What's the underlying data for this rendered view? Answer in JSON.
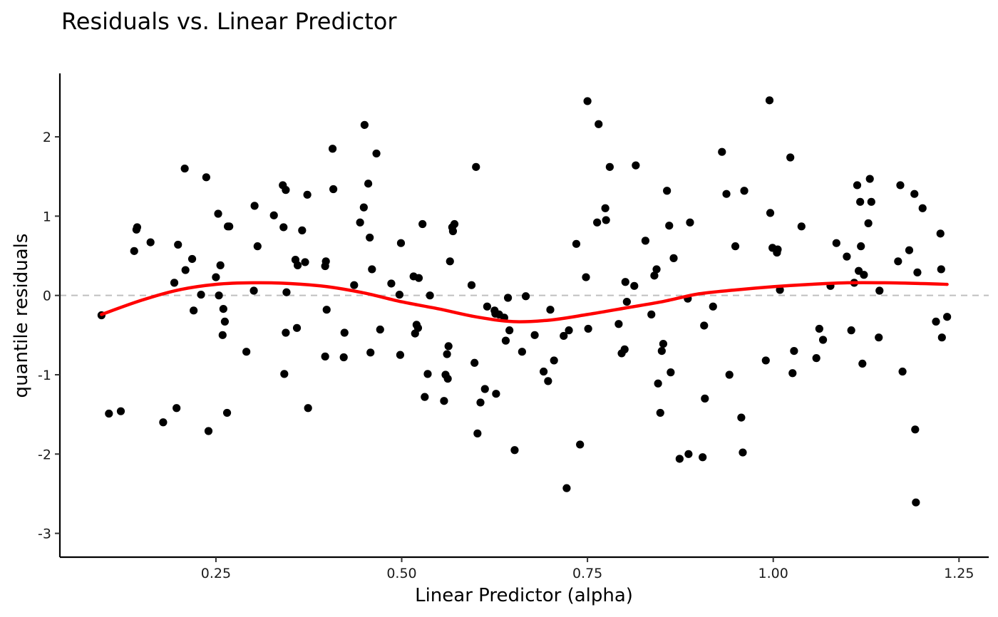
{
  "chart_data": {
    "type": "scatter",
    "title": "Residuals vs. Linear Predictor",
    "xlabel": "Linear Predictor (alpha)",
    "ylabel": "quantile residuals",
    "xlim": [
      0.04,
      1.29
    ],
    "ylim": [
      -3.3,
      2.8
    ],
    "x_ticks": [
      0.25,
      0.5,
      0.75,
      1.0,
      1.25
    ],
    "x_tick_labels": [
      "0.25",
      "0.50",
      "0.75",
      "1.00",
      "1.25"
    ],
    "y_ticks": [
      -3,
      -2,
      -1,
      0,
      1,
      2
    ],
    "y_tick_labels": [
      "-3",
      "-2",
      "-1",
      "0",
      "1",
      "2"
    ],
    "grid": false,
    "reference_line": {
      "y": 0,
      "style": "dashed",
      "color": "#bfbfbf"
    },
    "point_color": "#000000",
    "smooth_color": "#ff0000",
    "series": [
      {
        "kind": "points",
        "x": [
          0.096,
          0.106,
          0.122,
          0.14,
          0.143,
          0.144,
          0.162,
          0.179,
          0.194,
          0.197,
          0.199,
          0.208,
          0.209,
          0.218,
          0.22,
          0.23,
          0.237,
          0.24,
          0.25,
          0.253,
          0.254,
          0.256,
          0.259,
          0.26,
          0.262,
          0.265,
          0.266,
          0.268,
          0.291,
          0.301,
          0.302,
          0.306,
          0.328,
          0.34,
          0.341,
          0.342,
          0.344,
          0.345,
          0.344,
          0.357,
          0.359,
          0.36,
          0.366,
          0.37,
          0.373,
          0.374,
          0.397,
          0.398,
          0.397,
          0.399,
          0.407,
          0.408,
          0.422,
          0.423,
          0.436,
          0.444,
          0.449,
          0.45,
          0.455,
          0.457,
          0.458,
          0.46,
          0.466,
          0.471,
          0.486,
          0.497,
          0.498,
          0.499,
          0.516,
          0.518,
          0.52,
          0.523,
          0.522,
          0.528,
          0.531,
          0.535,
          0.538,
          0.557,
          0.559,
          0.561,
          0.562,
          0.563,
          0.565,
          0.568,
          0.569,
          0.571,
          0.594,
          0.598,
          0.6,
          0.602,
          0.606,
          0.612,
          0.615,
          0.625,
          0.626,
          0.627,
          0.631,
          0.638,
          0.64,
          0.643,
          0.645,
          0.652,
          0.662,
          0.667,
          0.679,
          0.691,
          0.697,
          0.7,
          0.705,
          0.718,
          0.722,
          0.725,
          0.735,
          0.74,
          0.748,
          0.75,
          0.751,
          0.763,
          0.765,
          0.774,
          0.775,
          0.78,
          0.792,
          0.796,
          0.8,
          0.801,
          0.803,
          0.813,
          0.815,
          0.828,
          0.836,
          0.84,
          0.843,
          0.845,
          0.848,
          0.85,
          0.852,
          0.857,
          0.86,
          0.862,
          0.866,
          0.874,
          0.885,
          0.886,
          0.888,
          0.905,
          0.907,
          0.908,
          0.919,
          0.931,
          0.937,
          0.941,
          0.949,
          0.957,
          0.959,
          0.961,
          0.99,
          0.995,
          0.996,
          0.999,
          1.005,
          1.006,
          1.009,
          1.023,
          1.026,
          1.028,
          1.038,
          1.058,
          1.062,
          1.067,
          1.077,
          1.085,
          1.099,
          1.105,
          1.109,
          1.113,
          1.115,
          1.117,
          1.118,
          1.12,
          1.122,
          1.128,
          1.13,
          1.132,
          1.142,
          1.143,
          1.168,
          1.171,
          1.174,
          1.183,
          1.19,
          1.191,
          1.192,
          1.194,
          1.201,
          1.219,
          1.225,
          1.226,
          1.227,
          1.234
        ],
        "y": [
          -0.25,
          -1.49,
          -1.46,
          0.56,
          0.83,
          0.86,
          0.67,
          -1.6,
          0.16,
          -1.42,
          0.64,
          1.6,
          0.32,
          0.46,
          -0.19,
          0.01,
          1.49,
          -1.71,
          0.23,
          1.03,
          0.0,
          0.38,
          -0.5,
          -0.17,
          -0.33,
          -1.48,
          0.87,
          0.87,
          -0.71,
          0.06,
          1.13,
          0.62,
          1.01,
          1.39,
          0.86,
          -0.99,
          1.33,
          0.04,
          -0.47,
          0.45,
          -0.41,
          0.38,
          0.82,
          0.42,
          1.27,
          -1.42,
          0.37,
          0.43,
          -0.77,
          -0.18,
          1.85,
          1.34,
          -0.78,
          -0.47,
          0.13,
          0.92,
          1.11,
          2.15,
          1.41,
          0.73,
          -0.72,
          0.33,
          1.79,
          -0.43,
          0.15,
          0.01,
          -0.75,
          0.66,
          0.24,
          -0.48,
          -0.37,
          0.22,
          -0.41,
          0.9,
          -1.28,
          -0.99,
          0.0,
          -1.33,
          -1.0,
          -0.74,
          -1.05,
          -0.64,
          0.43,
          0.86,
          0.81,
          0.9,
          0.13,
          -0.85,
          1.62,
          -1.74,
          -1.35,
          -1.18,
          -0.14,
          -0.19,
          -0.23,
          -1.24,
          -0.24,
          -0.28,
          -0.57,
          -0.03,
          -0.44,
          -1.95,
          -0.71,
          -0.01,
          -0.5,
          -0.96,
          -1.08,
          -0.18,
          -0.82,
          -0.51,
          -2.43,
          -0.44,
          0.65,
          -1.88,
          0.23,
          2.45,
          -0.42,
          0.92,
          2.16,
          1.1,
          0.95,
          1.62,
          -0.36,
          -0.73,
          -0.68,
          0.17,
          -0.08,
          0.12,
          1.64,
          0.69,
          -0.24,
          0.25,
          0.33,
          -1.11,
          -1.48,
          -0.7,
          -0.61,
          1.32,
          0.88,
          -0.97,
          0.47,
          -2.06,
          -0.04,
          -2.0,
          0.92,
          -2.04,
          -0.38,
          -1.3,
          -0.14,
          1.81,
          1.28,
          -1.0,
          0.62,
          -1.54,
          -1.98,
          1.32,
          -0.82,
          2.46,
          1.04,
          0.6,
          0.54,
          0.58,
          0.07,
          1.74,
          -0.98,
          -0.7,
          0.87,
          -0.79,
          -0.42,
          -0.56,
          0.12,
          0.66,
          0.49,
          -0.44,
          0.16,
          1.39,
          0.31,
          1.18,
          0.62,
          -0.86,
          0.26,
          0.91,
          1.47,
          1.18,
          -0.53,
          0.06,
          0.43,
          1.39,
          -0.96,
          0.57,
          1.28,
          -1.69,
          -2.61,
          0.29,
          1.1,
          -0.33,
          0.78,
          0.33,
          -0.53,
          -0.27
        ]
      },
      {
        "kind": "smooth",
        "x": [
          0.096,
          0.15,
          0.2,
          0.25,
          0.3,
          0.35,
          0.4,
          0.45,
          0.5,
          0.55,
          0.6,
          0.65,
          0.7,
          0.75,
          0.8,
          0.85,
          0.9,
          0.95,
          1.0,
          1.05,
          1.1,
          1.15,
          1.2,
          1.234
        ],
        "y": [
          -0.24,
          -0.06,
          0.07,
          0.14,
          0.16,
          0.15,
          0.11,
          0.03,
          -0.08,
          -0.17,
          -0.27,
          -0.33,
          -0.31,
          -0.24,
          -0.16,
          -0.08,
          0.02,
          0.07,
          0.11,
          0.14,
          0.16,
          0.16,
          0.15,
          0.14
        ]
      }
    ]
  }
}
